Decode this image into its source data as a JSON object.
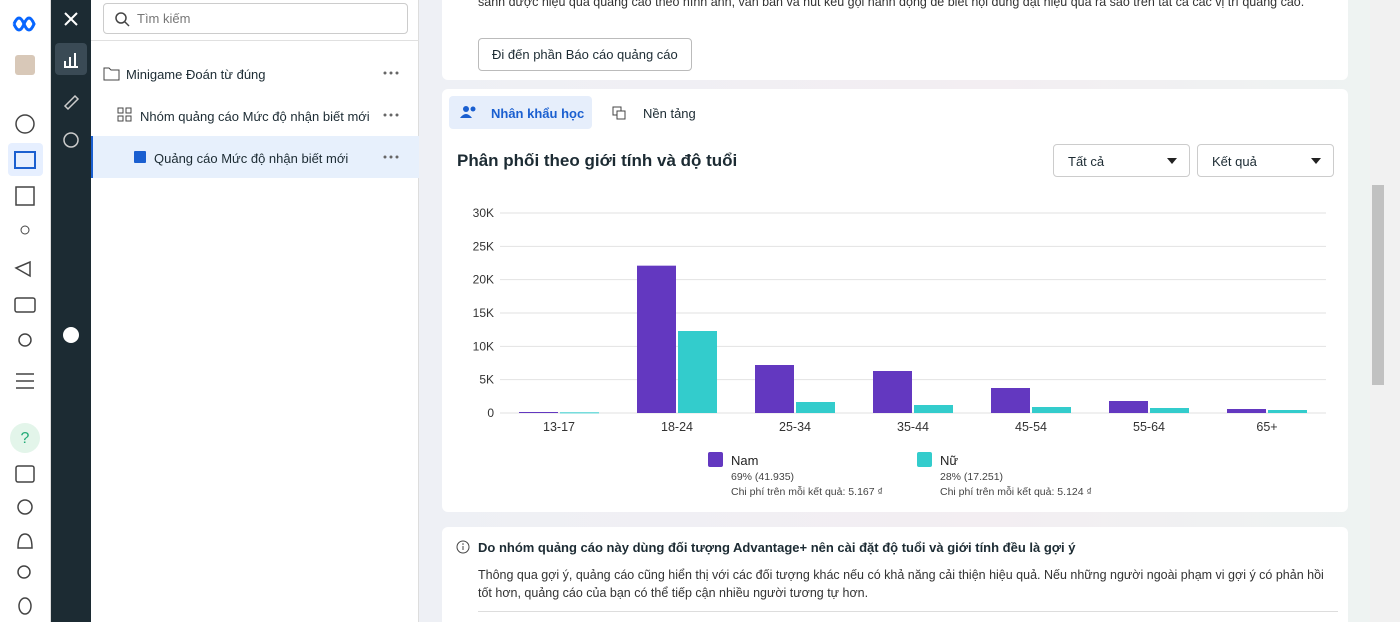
{
  "sidebar": {
    "search_placeholder": "Tìm kiếm",
    "help": "?",
    "tree": [
      {
        "label": "Minigame Đoán từ đúng"
      },
      {
        "label": "Nhóm quảng cáo Mức độ nhận biết mới"
      },
      {
        "label": "Quảng cáo Mức độ nhận biết mới"
      }
    ]
  },
  "top_card": {
    "text": "sánh được hiệu quả quảng cáo theo hình ảnh, văn bản và nút kêu gọi hành động để biết nội dung đạt hiệu quả ra sao trên tất cả các vị trí quảng cáo.",
    "button": "Đi đến phần Báo cáo quảng cáo"
  },
  "tabs": [
    "Nhân khẩu học",
    "Nền tảng"
  ],
  "dropdowns": [
    "Tất cả",
    "Kết quả"
  ],
  "chart_data": {
    "type": "bar",
    "title": "Phân phối theo giới tính và độ tuổi",
    "categories": [
      "13-17",
      "18-24",
      "25-34",
      "35-44",
      "45-54",
      "55-64",
      "65+"
    ],
    "series": [
      {
        "name": "Nam",
        "color": "#6338c0",
        "detail": "69% (41.935)",
        "cost": "Chi phí trên mỗi kết quả: 5.167 ₫",
        "values": [
          150,
          22100,
          7200,
          6300,
          3750,
          1800,
          600
        ]
      },
      {
        "name": "Nữ",
        "color": "#33cccc",
        "detail": "28% (17.251)",
        "cost": "Chi phí trên mỗi kết quả: 5.124 ₫",
        "values": [
          100,
          12300,
          1650,
          1200,
          900,
          750,
          450
        ]
      }
    ],
    "ylim": [
      0,
      30000
    ],
    "yticks": [
      0,
      {
        "value": 5000,
        "label": "5K"
      },
      {
        "value": 10000,
        "label": "10K"
      },
      {
        "value": 15000,
        "label": "15K"
      },
      {
        "value": 20000,
        "label": "20K"
      },
      {
        "value": 25000,
        "label": "25K"
      },
      {
        "value": 30000,
        "label": "30K"
      }
    ],
    "grid": true
  },
  "notice": {
    "title": "Do nhóm quảng cáo này dùng đối tượng Advantage+ nên cài đặt độ tuổi và giới tính đều là gợi ý",
    "text": "Thông qua gợi ý, quảng cáo cũng hiển thị với các đối tượng khác nếu có khả năng cải thiện hiệu quả. Nếu những người ngoài phạm vi gợi ý có phản hồi tốt hơn, quảng cáo của bạn có thể tiếp cận nhiều người tương tự hơn."
  }
}
